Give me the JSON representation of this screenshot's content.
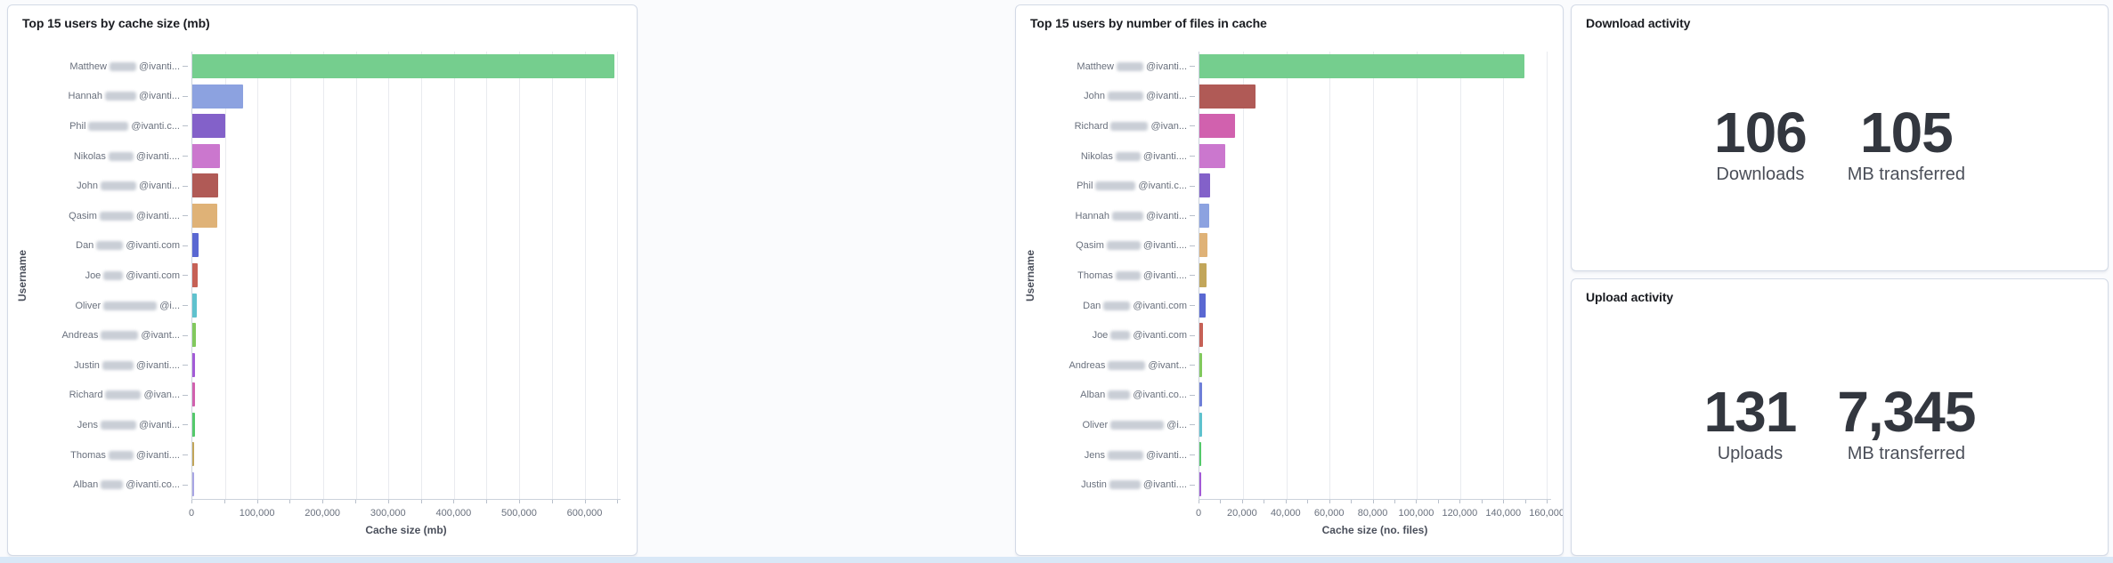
{
  "chart_data": [
    {
      "type": "bar",
      "orientation": "horizontal",
      "title": "Top 15 users by cache size (mb)",
      "xlabel": "Cache size (mb)",
      "ylabel": "Username",
      "xlim": [
        0,
        655000
      ],
      "grid": true,
      "grid_step": 50000,
      "grid_max": 650000,
      "minor_tick_step": 50000,
      "x_tick_values": [
        0,
        100000,
        200000,
        300000,
        400000,
        500000,
        600000
      ],
      "x_tick_labels": [
        "0",
        "100,000",
        "200,000",
        "300,000",
        "400,000",
        "500,000",
        "600,000"
      ],
      "categories": [
        "Matthew █@ivanti...",
        "Hannah █@ivanti...",
        "Phil █@ivanti.c...",
        "Nikolas █@ivanti....",
        "John █@ivanti...",
        "Qasim █@ivanti....",
        "Dan █@ivanti.com",
        "Joe █@ivanti.com",
        "Oliver █@i...",
        "Andreas █@ivant...",
        "Justin █@ivanti....",
        "Richard █@ivan...",
        "Jens █@ivanti...",
        "Thomas █@ivanti....",
        "Alban █@ivanti.co..."
      ],
      "values": [
        645000,
        77000,
        51000,
        42000,
        39500,
        38500,
        9500,
        7700,
        6400,
        5400,
        4600,
        4100,
        3600,
        3000,
        2300
      ],
      "bars": [
        {
          "prefix": "Matthew",
          "suffix": "@ivanti...",
          "blur_w": 30,
          "value": 645000,
          "color": "#75CE8E"
        },
        {
          "prefix": "Hannah",
          "suffix": "@ivanti...",
          "blur_w": 35,
          "value": 77000,
          "color": "#8CA2E0"
        },
        {
          "prefix": "Phil",
          "suffix": "@ivanti.c...",
          "blur_w": 45,
          "value": 51000,
          "color": "#8361C9"
        },
        {
          "prefix": "Nikolas",
          "suffix": "@ivanti....",
          "blur_w": 28,
          "value": 42000,
          "color": "#CB77CE"
        },
        {
          "prefix": "John",
          "suffix": "@ivanti...",
          "blur_w": 40,
          "value": 39500,
          "color": "#B05A56"
        },
        {
          "prefix": "Qasim",
          "suffix": "@ivanti....",
          "blur_w": 38,
          "value": 38500,
          "color": "#DFB277"
        },
        {
          "prefix": "Dan",
          "suffix": "@ivanti.com",
          "blur_w": 30,
          "value": 9500,
          "color": "#5A68D2"
        },
        {
          "prefix": "Joe",
          "suffix": "@ivanti.com",
          "blur_w": 22,
          "value": 7700,
          "color": "#C66156"
        },
        {
          "prefix": "Oliver",
          "suffix": "@i...",
          "blur_w": 60,
          "value": 6400,
          "color": "#5FC2CE"
        },
        {
          "prefix": "Andreas",
          "suffix": "@ivant...",
          "blur_w": 42,
          "value": 5400,
          "color": "#82C95E"
        },
        {
          "prefix": "Justin",
          "suffix": "@ivanti....",
          "blur_w": 35,
          "value": 4600,
          "color": "#A35BD6"
        },
        {
          "prefix": "Richard",
          "suffix": "@ivan...",
          "blur_w": 40,
          "value": 4100,
          "color": "#D161AE"
        },
        {
          "prefix": "Jens",
          "suffix": "@ivanti...",
          "blur_w": 40,
          "value": 3600,
          "color": "#55C96B"
        },
        {
          "prefix": "Thomas",
          "suffix": "@ivanti....",
          "blur_w": 28,
          "value": 3000,
          "color": "#C2A65A"
        },
        {
          "prefix": "Alban",
          "suffix": "@ivanti.co...",
          "blur_w": 25,
          "value": 2300,
          "color": "#A9A6E4"
        }
      ]
    },
    {
      "type": "bar",
      "orientation": "horizontal",
      "title": "Top 15 users by number of files in cache",
      "xlabel": "Cache size (no. files)",
      "ylabel": "Username",
      "xlim": [
        0,
        162000
      ],
      "grid": true,
      "grid_step": 20000,
      "grid_max": 160000,
      "minor_tick_step": 10000,
      "x_tick_values": [
        0,
        20000,
        40000,
        60000,
        80000,
        100000,
        120000,
        140000,
        160000
      ],
      "x_tick_labels": [
        "0",
        "20,000",
        "40,000",
        "60,000",
        "80,000",
        "100,000",
        "120,000",
        "140,000",
        "160,000"
      ],
      "categories": [
        "Matthew █@ivanti...",
        "John █@ivanti...",
        "Richard █@ivan...",
        "Nikolas █@ivanti....",
        "Phil █@ivanti.c...",
        "Hannah █@ivanti...",
        "Qasim █@ivanti....",
        "Thomas █@ivanti....",
        "Dan █@ivanti.com",
        "Joe █@ivanti.com",
        "Andreas █@ivant...",
        "Alban █@ivanti.co...",
        "Oliver █@i...",
        "Jens █@ivanti...",
        "Justin █@ivanti...."
      ],
      "values": [
        149500,
        26000,
        16500,
        11800,
        5000,
        4400,
        3800,
        3100,
        3000,
        1800,
        1400,
        1300,
        1200,
        950,
        700
      ],
      "bars": [
        {
          "prefix": "Matthew",
          "suffix": "@ivanti...",
          "blur_w": 30,
          "value": 149500,
          "color": "#75CE8E"
        },
        {
          "prefix": "John",
          "suffix": "@ivanti...",
          "blur_w": 40,
          "value": 26000,
          "color": "#B05A56"
        },
        {
          "prefix": "Richard",
          "suffix": "@ivan...",
          "blur_w": 42,
          "value": 16500,
          "color": "#D161AE"
        },
        {
          "prefix": "Nikolas",
          "suffix": "@ivanti....",
          "blur_w": 28,
          "value": 11800,
          "color": "#CB77CE"
        },
        {
          "prefix": "Phil",
          "suffix": "@ivanti.c...",
          "blur_w": 45,
          "value": 5000,
          "color": "#8361C9"
        },
        {
          "prefix": "Hannah",
          "suffix": "@ivanti...",
          "blur_w": 35,
          "value": 4400,
          "color": "#8CA2E0"
        },
        {
          "prefix": "Qasim",
          "suffix": "@ivanti....",
          "blur_w": 38,
          "value": 3800,
          "color": "#DFB277"
        },
        {
          "prefix": "Thomas",
          "suffix": "@ivanti....",
          "blur_w": 28,
          "value": 3100,
          "color": "#C2A65A"
        },
        {
          "prefix": "Dan",
          "suffix": "@ivanti.com",
          "blur_w": 30,
          "value": 3000,
          "color": "#5A68D2"
        },
        {
          "prefix": "Joe",
          "suffix": "@ivanti.com",
          "blur_w": 22,
          "value": 1800,
          "color": "#C66156"
        },
        {
          "prefix": "Andreas",
          "suffix": "@ivant...",
          "blur_w": 42,
          "value": 1400,
          "color": "#82C95E"
        },
        {
          "prefix": "Alban",
          "suffix": "@ivanti.co...",
          "blur_w": 25,
          "value": 1300,
          "color": "#6F7FD8"
        },
        {
          "prefix": "Oliver",
          "suffix": "@i...",
          "blur_w": 60,
          "value": 1200,
          "color": "#5FC2CE"
        },
        {
          "prefix": "Jens",
          "suffix": "@ivanti...",
          "blur_w": 40,
          "value": 950,
          "color": "#55C96B"
        },
        {
          "prefix": "Justin",
          "suffix": "@ivanti....",
          "blur_w": 35,
          "value": 700,
          "color": "#A35BD6"
        }
      ]
    }
  ],
  "metrics": [
    {
      "title": "Download activity",
      "items": [
        {
          "value": "106",
          "label": "Downloads"
        },
        {
          "value": "105",
          "label": "MB transferred"
        }
      ]
    },
    {
      "title": "Upload activity",
      "items": [
        {
          "value": "131",
          "label": "Uploads"
        },
        {
          "value": "7,345",
          "label": "MB transferred"
        }
      ]
    }
  ]
}
